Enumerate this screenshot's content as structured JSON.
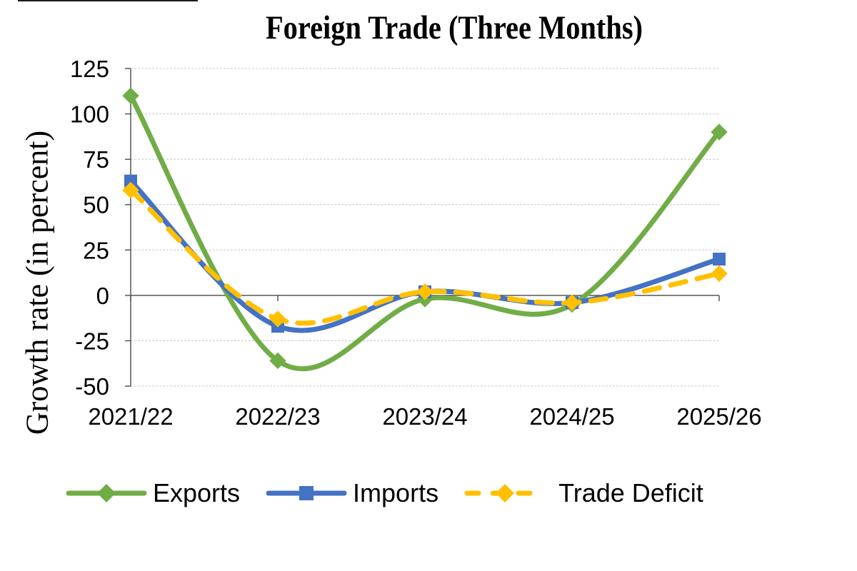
{
  "chart_data": {
    "type": "line",
    "title": "Foreign Trade (Three Months)",
    "xlabel": "",
    "ylabel": "Growth rate (in percent)",
    "categories": [
      "2021/22",
      "2022/23",
      "2023/24",
      "2024/25",
      "2025/26"
    ],
    "series": [
      {
        "name": "Exports",
        "color": "#70AD47",
        "marker": "diamond",
        "dash": false,
        "values": [
          110,
          -36,
          -2,
          -5,
          90
        ]
      },
      {
        "name": "Imports",
        "color": "#4472C4",
        "marker": "square",
        "dash": false,
        "values": [
          63,
          -17,
          2,
          -4,
          20
        ]
      },
      {
        "name": "Trade Deficit",
        "color": "#FFC000",
        "marker": "diamond",
        "dash": true,
        "values": [
          58,
          -13,
          2,
          -4,
          12
        ]
      }
    ],
    "ylim": [
      -50,
      125
    ],
    "yticks": [
      125,
      100,
      75,
      50,
      25,
      0,
      -25,
      -50
    ],
    "grid": true,
    "smooth": true,
    "legend_position": "bottom"
  },
  "decor": {
    "top_rule": true
  }
}
